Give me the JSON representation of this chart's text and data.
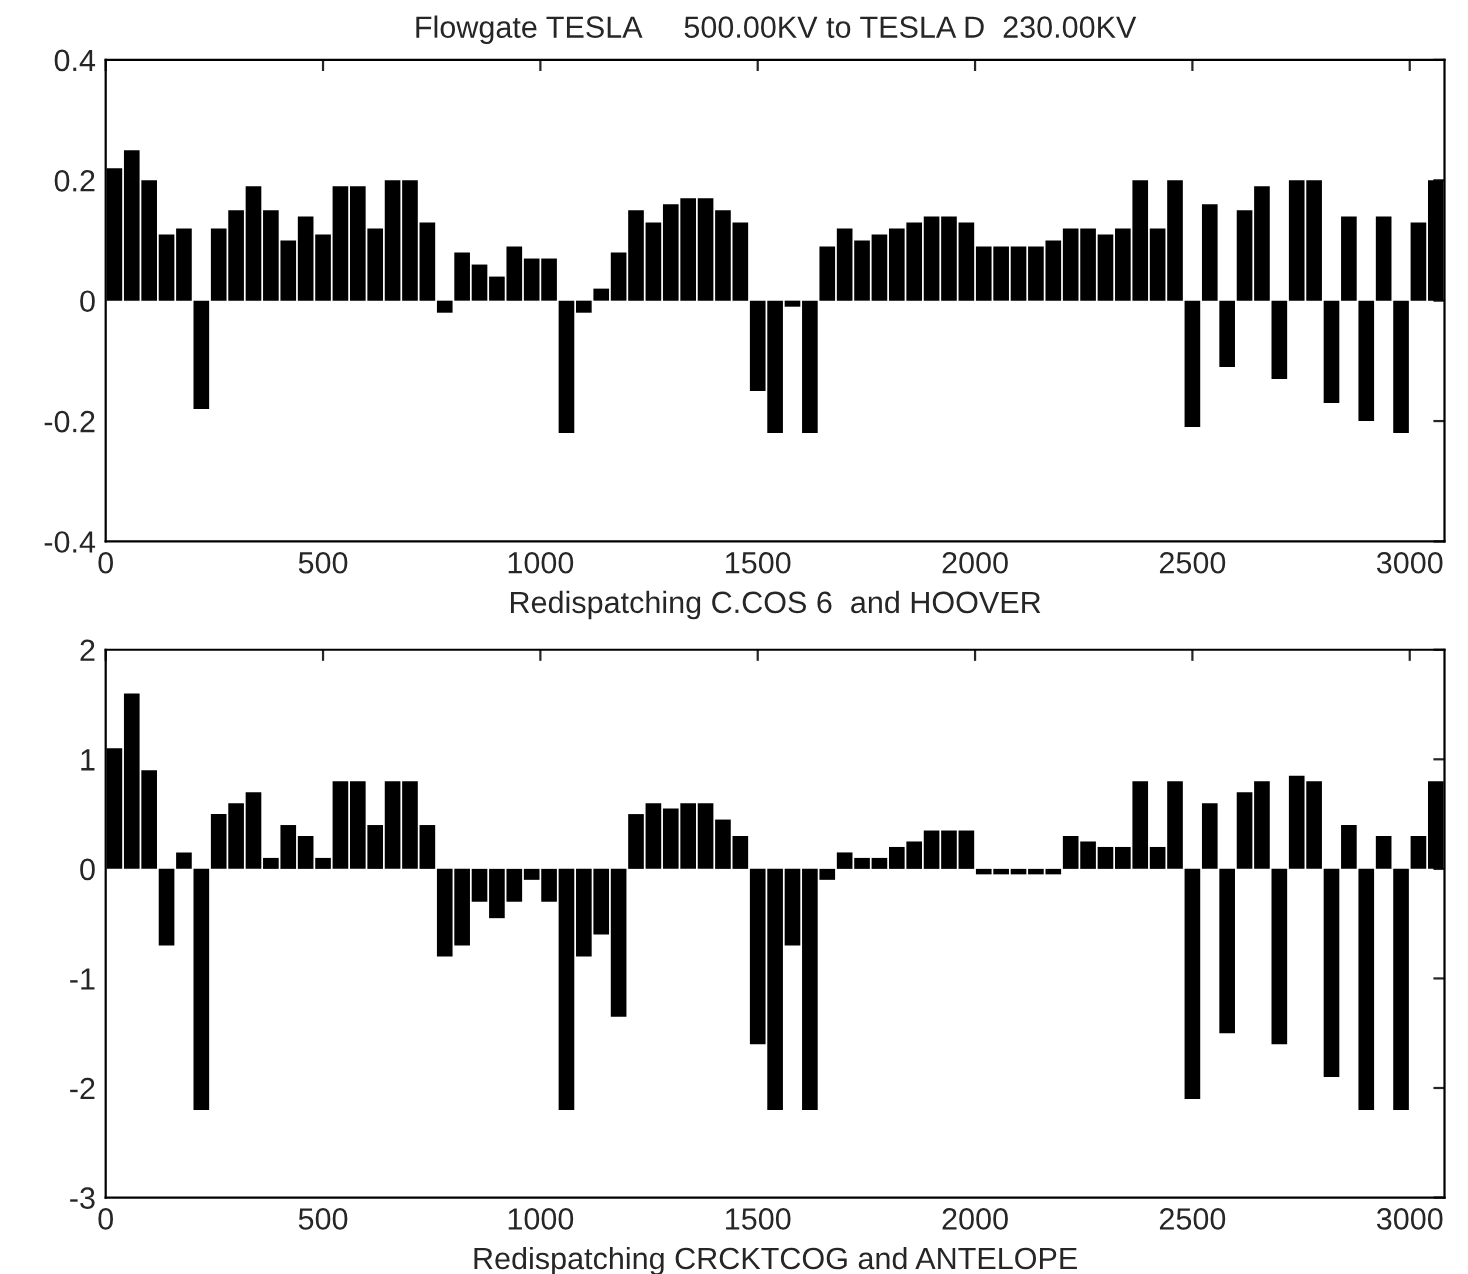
{
  "chart_data": [
    {
      "type": "bar",
      "title": "Flowgate TESLA     500.00KV to TESLA D  230.00KV",
      "xlabel": "Redispatching C.COS 6  and HOOVER",
      "color": "#000000",
      "x": [
        20,
        60,
        100,
        140,
        180,
        220,
        260,
        300,
        340,
        380,
        420,
        460,
        500,
        540,
        580,
        620,
        660,
        700,
        740,
        780,
        820,
        860,
        900,
        940,
        980,
        1020,
        1060,
        1100,
        1140,
        1180,
        1220,
        1260,
        1300,
        1340,
        1380,
        1420,
        1460,
        1500,
        1540,
        1580,
        1620,
        1660,
        1700,
        1740,
        1780,
        1820,
        1860,
        1900,
        1940,
        1980,
        2020,
        2060,
        2100,
        2140,
        2180,
        2220,
        2260,
        2300,
        2340,
        2380,
        2420,
        2460,
        2500,
        2540,
        2580,
        2620,
        2660,
        2700,
        2740,
        2780,
        2820,
        2860,
        2900,
        2940,
        2980,
        3020,
        3060
      ],
      "values": [
        0.22,
        0.25,
        0.2,
        0.11,
        0.12,
        -0.18,
        0.12,
        0.15,
        0.19,
        0.15,
        0.1,
        0.14,
        0.11,
        0.19,
        0.19,
        0.12,
        0.2,
        0.2,
        0.13,
        -0.02,
        0.08,
        0.06,
        0.04,
        0.09,
        0.07,
        0.07,
        -0.22,
        -0.02,
        0.02,
        0.08,
        0.15,
        0.13,
        0.16,
        0.17,
        0.17,
        0.15,
        0.13,
        -0.15,
        -0.22,
        -0.01,
        -0.22,
        0.09,
        0.12,
        0.1,
        0.11,
        0.12,
        0.13,
        0.14,
        0.14,
        0.13,
        0.09,
        0.09,
        0.09,
        0.09,
        0.1,
        0.12,
        0.12,
        0.11,
        0.12,
        0.2,
        0.12,
        0.2,
        -0.21,
        0.16,
        -0.11,
        0.15,
        0.19,
        -0.13,
        0.2,
        0.2,
        -0.17,
        0.14,
        -0.2,
        0.14,
        -0.22,
        0.13,
        0.2
      ],
      "xlim": [
        0,
        3080
      ],
      "xticks": [
        0,
        500,
        1000,
        1500,
        2000,
        2500,
        3000
      ],
      "ylim": [
        -0.4,
        0.4
      ],
      "yticks": [
        -0.4,
        -0.2,
        0,
        0.2,
        0.4
      ],
      "grid": false,
      "legend": false
    },
    {
      "type": "bar",
      "xlabel": "Redispatching CRCKTCOG and ANTELOPE",
      "color": "#000000",
      "x": [
        20,
        60,
        100,
        140,
        180,
        220,
        260,
        300,
        340,
        380,
        420,
        460,
        500,
        540,
        580,
        620,
        660,
        700,
        740,
        780,
        820,
        860,
        900,
        940,
        980,
        1020,
        1060,
        1100,
        1140,
        1180,
        1220,
        1260,
        1300,
        1340,
        1380,
        1420,
        1460,
        1500,
        1540,
        1580,
        1620,
        1660,
        1700,
        1740,
        1780,
        1820,
        1860,
        1900,
        1940,
        1980,
        2020,
        2060,
        2100,
        2140,
        2180,
        2220,
        2260,
        2300,
        2340,
        2380,
        2420,
        2460,
        2500,
        2540,
        2580,
        2620,
        2660,
        2700,
        2740,
        2780,
        2820,
        2860,
        2900,
        2940,
        2980,
        3020,
        3060
      ],
      "values": [
        1.1,
        1.6,
        0.9,
        -0.7,
        0.15,
        -2.2,
        0.5,
        0.6,
        0.7,
        0.1,
        0.4,
        0.3,
        0.1,
        0.8,
        0.8,
        0.4,
        0.8,
        0.8,
        0.4,
        -0.8,
        -0.7,
        -0.3,
        -0.45,
        -0.3,
        -0.1,
        -0.3,
        -2.2,
        -0.8,
        -0.6,
        -1.35,
        0.5,
        0.6,
        0.55,
        0.6,
        0.6,
        0.45,
        0.3,
        -1.6,
        -2.2,
        -0.7,
        -2.2,
        -0.1,
        0.15,
        0.1,
        0.1,
        0.2,
        0.25,
        0.35,
        0.35,
        0.35,
        -0.05,
        -0.05,
        -0.05,
        -0.05,
        -0.05,
        0.3,
        0.25,
        0.2,
        0.2,
        0.8,
        0.2,
        0.8,
        -2.1,
        0.6,
        -1.5,
        0.7,
        0.8,
        -1.6,
        0.85,
        0.8,
        -1.9,
        0.4,
        -2.2,
        0.3,
        -2.2,
        0.3,
        0.8
      ],
      "xlim": [
        0,
        3080
      ],
      "xticks": [
        0,
        500,
        1000,
        1500,
        2000,
        2500,
        3000
      ],
      "ylim": [
        -3,
        2
      ],
      "yticks": [
        -3,
        -2,
        -1,
        0,
        1,
        2
      ],
      "grid": false,
      "legend": false
    }
  ]
}
